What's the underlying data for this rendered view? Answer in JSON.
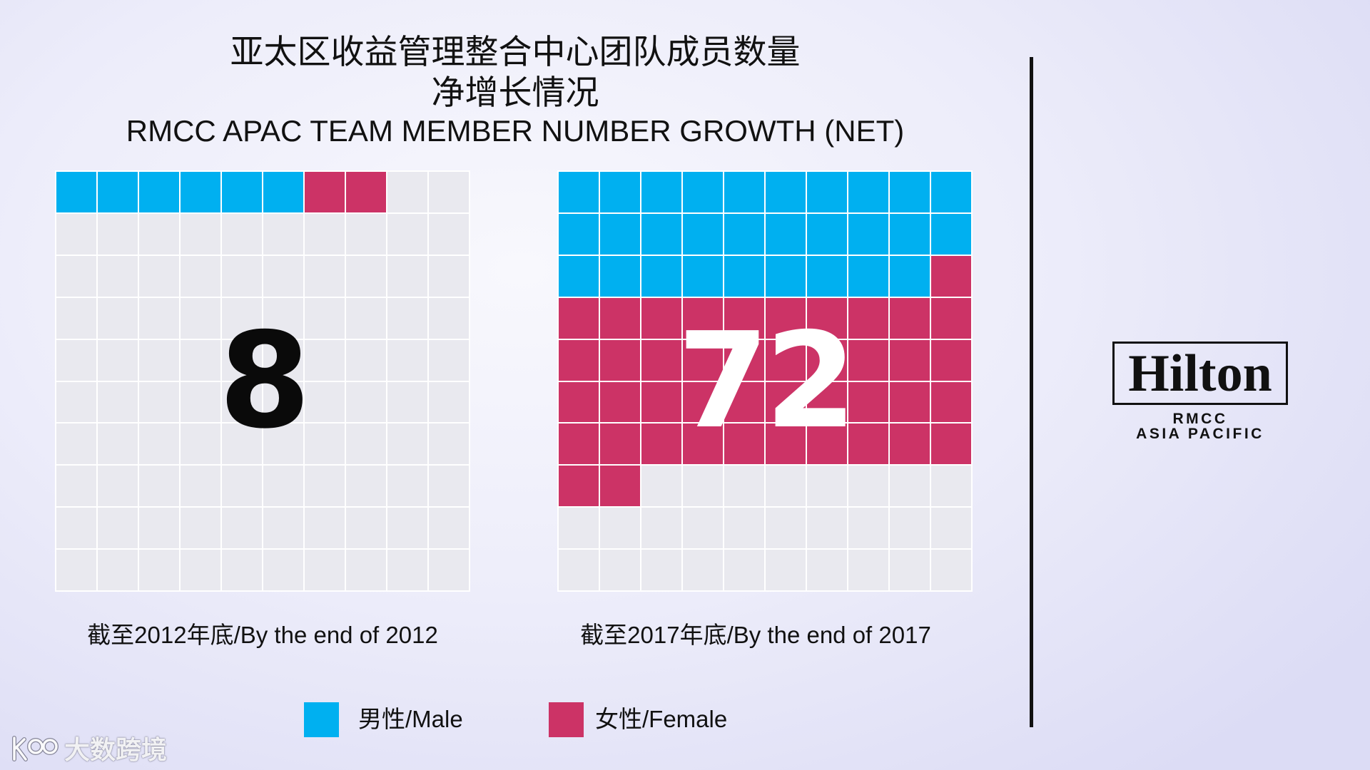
{
  "chart_data": {
    "type": "pie",
    "title": [
      "亚太区收益管理整合中心团队成员数量",
      "净增长情况",
      "RMCC APAC TEAM MEMBER NUMBER GROWTH (NET)"
    ],
    "categories": [
      "截至2012年底/By the end of 2012",
      "截至2017年底/By the end of 2017"
    ],
    "totals": [
      8,
      72
    ],
    "series": [
      {
        "name": "男性/Male",
        "color": "#00b0f0",
        "values": [
          6,
          29
        ]
      },
      {
        "name": "女性/Female",
        "color": "#cc3366",
        "values": [
          2,
          43
        ]
      }
    ],
    "empty_color": "#e9e9ef",
    "total_colors": [
      "#0a0a0a",
      "#ffffff"
    ],
    "legend": "bottom"
  },
  "brand": {
    "logo": "Hilton",
    "line1": "RMCC",
    "line2": "ASIA PACIFIC"
  },
  "watermark": {
    "text": "大数跨境"
  }
}
